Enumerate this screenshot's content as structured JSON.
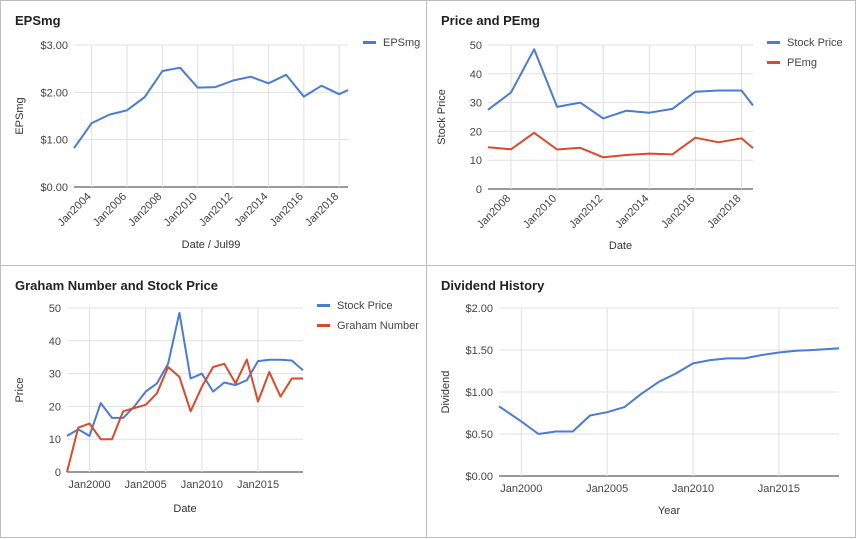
{
  "chart_data": [
    {
      "type": "line",
      "title": "EPSmg",
      "xlabel": "Date / Jul99",
      "ylabel": "EPSmg",
      "x_ticks": [
        "Jan2004",
        "Jan2006",
        "Jan2008",
        "Jan2010",
        "Jan2012",
        "Jan2014",
        "Jan2016",
        "Jan2018"
      ],
      "y_ticks": [
        "$0.00",
        "$1.00",
        "$2.00",
        "$3.00"
      ],
      "ylim": [
        0,
        3
      ],
      "xlim": [
        2003,
        2018.5
      ],
      "grid": true,
      "legend_position": "top-right",
      "series": [
        {
          "name": "EPSmg",
          "color": "#4a7bd6",
          "x": [
            2003,
            2004,
            2005,
            2006,
            2007,
            2008,
            2009,
            2010,
            2011,
            2012,
            2013,
            2014,
            2015,
            2016,
            2017,
            2018,
            2018.5
          ],
          "values": [
            0.82,
            1.35,
            1.53,
            1.62,
            1.9,
            2.45,
            2.52,
            2.1,
            2.11,
            2.25,
            2.33,
            2.19,
            2.37,
            1.91,
            2.14,
            1.96,
            2.05
          ]
        }
      ]
    },
    {
      "type": "line",
      "title": "Price and PEmg",
      "xlabel": "Date",
      "ylabel": "Stock Price",
      "x_ticks": [
        "Jan2008",
        "Jan2010",
        "Jan2012",
        "Jan2014",
        "Jan2016",
        "Jan2018"
      ],
      "y_ticks": [
        "0",
        "10",
        "20",
        "30",
        "40",
        "50"
      ],
      "ylim": [
        0,
        50
      ],
      "xlim": [
        2007,
        2018.5
      ],
      "grid": true,
      "legend_position": "top-right",
      "series": [
        {
          "name": "Stock Price",
          "color": "#4a7bd6",
          "x": [
            2007,
            2008,
            2009,
            2010,
            2011,
            2012,
            2013,
            2014,
            2015,
            2016,
            2017,
            2018,
            2018.5
          ],
          "values": [
            27.5,
            33.5,
            48.5,
            28.5,
            30.0,
            24.5,
            27.2,
            26.5,
            27.8,
            33.8,
            34.2,
            34.2,
            29.0
          ]
        },
        {
          "name": "PEmg",
          "color": "#dc4a2a",
          "x": [
            2007,
            2008,
            2009,
            2010,
            2011,
            2012,
            2013,
            2014,
            2015,
            2016,
            2017,
            2018,
            2018.5
          ],
          "values": [
            14.5,
            13.8,
            19.5,
            13.7,
            14.3,
            11.0,
            11.8,
            12.3,
            12.0,
            17.8,
            16.2,
            17.6,
            14.2
          ]
        }
      ]
    },
    {
      "type": "line",
      "title": "Graham Number and Stock Price",
      "xlabel": "Date",
      "ylabel": "Price",
      "x_ticks": [
        "Jan2000",
        "Jan2005",
        "Jan2010",
        "Jan2015"
      ],
      "y_ticks": [
        "0",
        "10",
        "20",
        "30",
        "40",
        "50"
      ],
      "ylim": [
        0,
        50
      ],
      "xlim": [
        1998,
        2019
      ],
      "grid": true,
      "legend_position": "top-right",
      "series": [
        {
          "name": "Stock Price",
          "color": "#4a7bd6",
          "x": [
            1998,
            1999,
            2000,
            2001,
            2002,
            2003,
            2004,
            2005,
            2006,
            2007,
            2008,
            2009,
            2010,
            2011,
            2012,
            2013,
            2014,
            2015,
            2016,
            2017,
            2018,
            2019
          ],
          "values": [
            11,
            13,
            11,
            21,
            16.5,
            16.5,
            20,
            24.5,
            27,
            33,
            48.5,
            28.5,
            30,
            24.5,
            27.3,
            26.5,
            28,
            33.8,
            34.2,
            34.2,
            34,
            31
          ]
        },
        {
          "name": "Graham Number",
          "color": "#dc4a2a",
          "x": [
            1998,
            1999,
            2000,
            2001,
            2002,
            2003,
            2004,
            2005,
            2006,
            2007,
            2008,
            2009,
            2010,
            2011,
            2012,
            2013,
            2014,
            2015,
            2016,
            2017,
            2018,
            2019
          ],
          "values": [
            0,
            13.5,
            14.8,
            10,
            10,
            18.5,
            19.5,
            20.5,
            24,
            32,
            29,
            18.5,
            26,
            32,
            33,
            27,
            34.3,
            21.5,
            30.5,
            23,
            28.5,
            28.5
          ]
        }
      ]
    },
    {
      "type": "line",
      "title": "Dividend History",
      "xlabel": "Year",
      "ylabel": "Dividend",
      "x_ticks": [
        "Jan2000",
        "Jan2005",
        "Jan2010",
        "Jan2015"
      ],
      "y_ticks": [
        "$0.00",
        "$0.50",
        "$1.00",
        "$1.50",
        "$2.00"
      ],
      "ylim": [
        0,
        2
      ],
      "xlim": [
        1998.7,
        2018.5
      ],
      "grid": true,
      "series": [
        {
          "name": "",
          "color": "#4a7bd6",
          "x": [
            1998.7,
            2000,
            2001,
            2002,
            2003,
            2004,
            2005,
            2006,
            2007,
            2008,
            2009,
            2010,
            2011,
            2012,
            2013,
            2014,
            2015,
            2016,
            2017,
            2018.5
          ],
          "values": [
            0.83,
            0.65,
            0.5,
            0.53,
            0.53,
            0.72,
            0.76,
            0.82,
            0.98,
            1.12,
            1.22,
            1.34,
            1.38,
            1.4,
            1.4,
            1.44,
            1.47,
            1.49,
            1.5,
            1.52
          ]
        }
      ]
    }
  ]
}
